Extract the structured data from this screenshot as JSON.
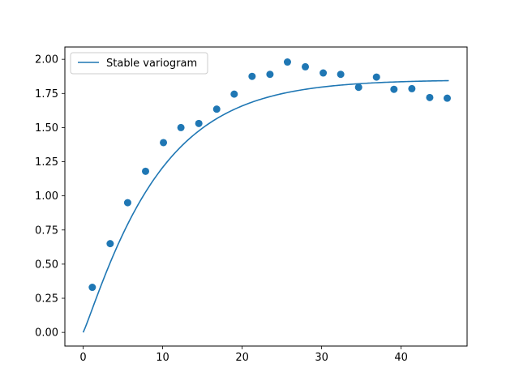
{
  "chart_data": {
    "type": "scatter",
    "title": "",
    "xlabel": "",
    "ylabel": "",
    "xlim": [
      -2.3,
      48.3
    ],
    "ylim": [
      -0.1,
      2.09
    ],
    "xticks": [
      0,
      10,
      20,
      30,
      40
    ],
    "xtick_labels": [
      "0",
      "10",
      "20",
      "30",
      "40"
    ],
    "yticks": [
      0.0,
      0.25,
      0.5,
      0.75,
      1.0,
      1.25,
      1.5,
      1.75,
      2.0
    ],
    "ytick_labels": [
      "0.00",
      "0.25",
      "0.50",
      "0.75",
      "1.00",
      "1.25",
      "1.50",
      "1.75",
      "2.00"
    ],
    "grid": false,
    "legend": {
      "position": "top-left",
      "entries": [
        "Stable variogram"
      ]
    },
    "series": [
      {
        "name": "Stable variogram",
        "kind": "line",
        "color": "#1f77b4",
        "model": {
          "sill": 1.85,
          "range": 9.5,
          "shape": 1.1,
          "x_max": 46
        }
      },
      {
        "kind": "scatter",
        "color": "#1f77b4",
        "x": [
          1.15,
          3.4,
          5.6,
          7.85,
          10.1,
          12.3,
          14.55,
          16.8,
          19.0,
          21.25,
          23.5,
          25.7,
          27.95,
          30.2,
          32.4,
          34.65,
          36.9,
          39.1,
          41.35,
          43.6,
          45.8
        ],
        "y": [
          0.33,
          0.65,
          0.95,
          1.18,
          1.39,
          1.5,
          1.53,
          1.635,
          1.745,
          1.875,
          1.89,
          1.98,
          1.945,
          1.9,
          1.89,
          1.795,
          1.87,
          1.78,
          1.785,
          1.72,
          1.715
        ]
      }
    ]
  }
}
